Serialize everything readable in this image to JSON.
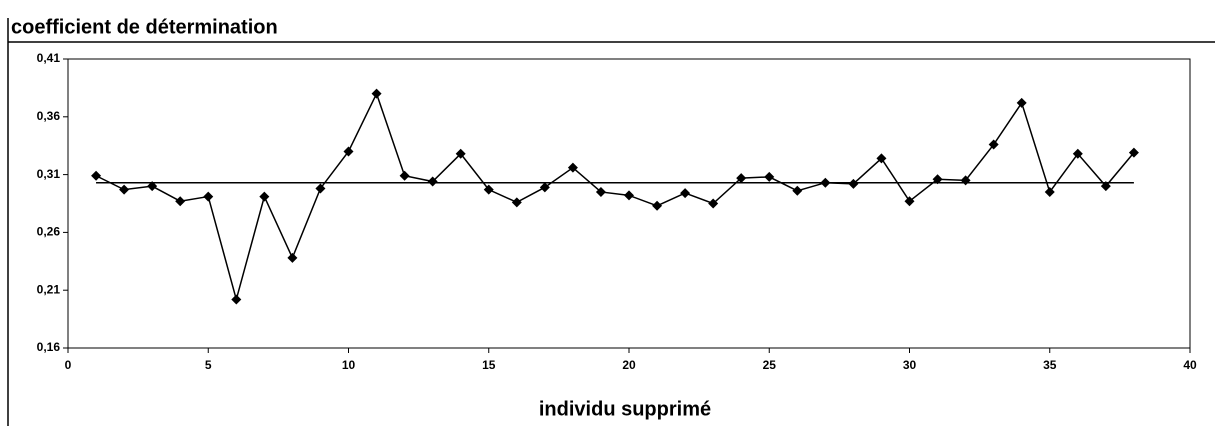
{
  "chart_data": {
    "type": "line",
    "title": "coefficient de détermination",
    "xlabel": "individu supprimé",
    "xlim": [
      0,
      40
    ],
    "xticks": [
      0,
      5,
      10,
      15,
      20,
      25,
      30,
      35,
      40
    ],
    "ylim": [
      0.16,
      0.41
    ],
    "yticks": [
      {
        "value": 0.16,
        "label": "0,16"
      },
      {
        "value": 0.21,
        "label": "0,21"
      },
      {
        "value": 0.26,
        "label": "0,26"
      },
      {
        "value": 0.31,
        "label": "0,31"
      },
      {
        "value": 0.36,
        "label": "0,36"
      },
      {
        "value": 0.41,
        "label": "0,41"
      }
    ],
    "series": [
      {
        "color": "#000000",
        "marker": "diamond",
        "x": [
          1,
          2,
          3,
          4,
          5,
          6,
          7,
          8,
          9,
          10,
          11,
          12,
          13,
          14,
          15,
          16,
          17,
          18,
          19,
          20,
          21,
          22,
          23,
          24,
          25,
          26,
          27,
          28,
          29,
          30,
          31,
          32,
          33,
          34,
          35,
          36,
          37,
          38
        ],
        "values": [
          0.309,
          0.297,
          0.3,
          0.287,
          0.291,
          0.202,
          0.291,
          0.238,
          0.298,
          0.33,
          0.38,
          0.309,
          0.304,
          0.328,
          0.297,
          0.286,
          0.299,
          0.316,
          0.295,
          0.292,
          0.283,
          0.294,
          0.285,
          0.307,
          0.308,
          0.296,
          0.303,
          0.302,
          0.324,
          0.287,
          0.306,
          0.305,
          0.336,
          0.372,
          0.295,
          0.328,
          0.3,
          0.329
        ]
      },
      {
        "color": "#000000",
        "marker": "none",
        "x": [
          1,
          38
        ],
        "values": [
          0.303,
          0.303
        ]
      }
    ]
  }
}
